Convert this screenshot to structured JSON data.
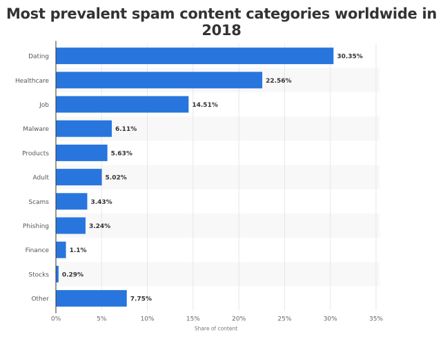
{
  "chart_data": {
    "type": "bar",
    "orientation": "horizontal",
    "title": "Most prevalent spam content categories worldwide in 2018",
    "xlabel": "Share of content",
    "ylabel": "",
    "categories": [
      "Dating",
      "Healthcare",
      "Job",
      "Malware",
      "Products",
      "Adult",
      "Scams",
      "Phishing",
      "Finance",
      "Stocks",
      "Other"
    ],
    "values": [
      30.35,
      22.56,
      14.51,
      6.11,
      5.63,
      5.02,
      3.43,
      3.24,
      1.1,
      0.29,
      7.75
    ],
    "value_labels": [
      "30.35%",
      "22.56%",
      "14.51%",
      "6.11%",
      "5.63%",
      "5.02%",
      "3.43%",
      "3.24%",
      "1.1%",
      "0.29%",
      "7.75%"
    ],
    "xlim": [
      0,
      35
    ],
    "ticks": [
      0,
      5,
      10,
      15,
      20,
      25,
      30,
      35
    ],
    "tick_labels": [
      "0%",
      "5%",
      "10%",
      "15%",
      "20%",
      "25%",
      "30%",
      "35%"
    ],
    "grid": true,
    "bar_color": "#2876dd"
  }
}
